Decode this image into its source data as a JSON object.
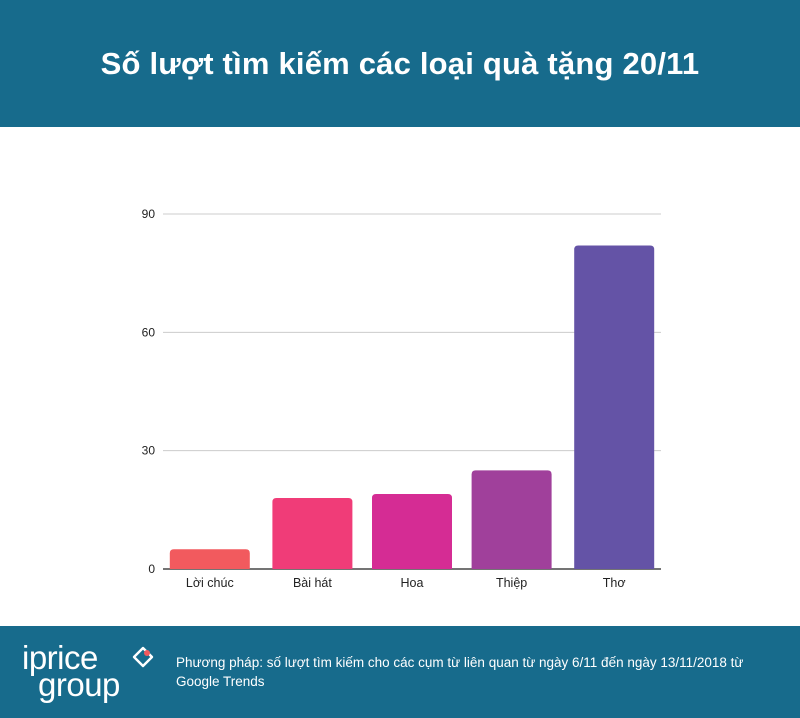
{
  "header": {
    "title": "Số lượt tìm kiếm các loại quà tặng 20/11"
  },
  "chart_data": {
    "type": "bar",
    "title": "Số lượt tìm kiếm các loại quà tặng 20/11",
    "categories": [
      "Lời chúc",
      "Bài hát",
      "Hoa",
      "Thiệp",
      "Thơ"
    ],
    "values": [
      5,
      18,
      19,
      25,
      82
    ],
    "colors": [
      "#f25a5e",
      "#f03c78",
      "#d52c94",
      "#a0409b",
      "#6453a6"
    ],
    "ylim": [
      0,
      90
    ],
    "yticks": [
      0,
      30,
      60,
      90
    ],
    "grid": true,
    "xlabel": "",
    "ylabel": ""
  },
  "footer": {
    "logo_line1": "iprice",
    "logo_line2": "group",
    "methodology": "Phương pháp: số lượt tìm kiếm cho các cụm từ liên quan từ ngày 6/11 đến ngày 13/11/2018 từ Google Trends"
  },
  "theme": {
    "brand": "#176b8c",
    "grid": "#cccccc",
    "axis": "#222222"
  }
}
